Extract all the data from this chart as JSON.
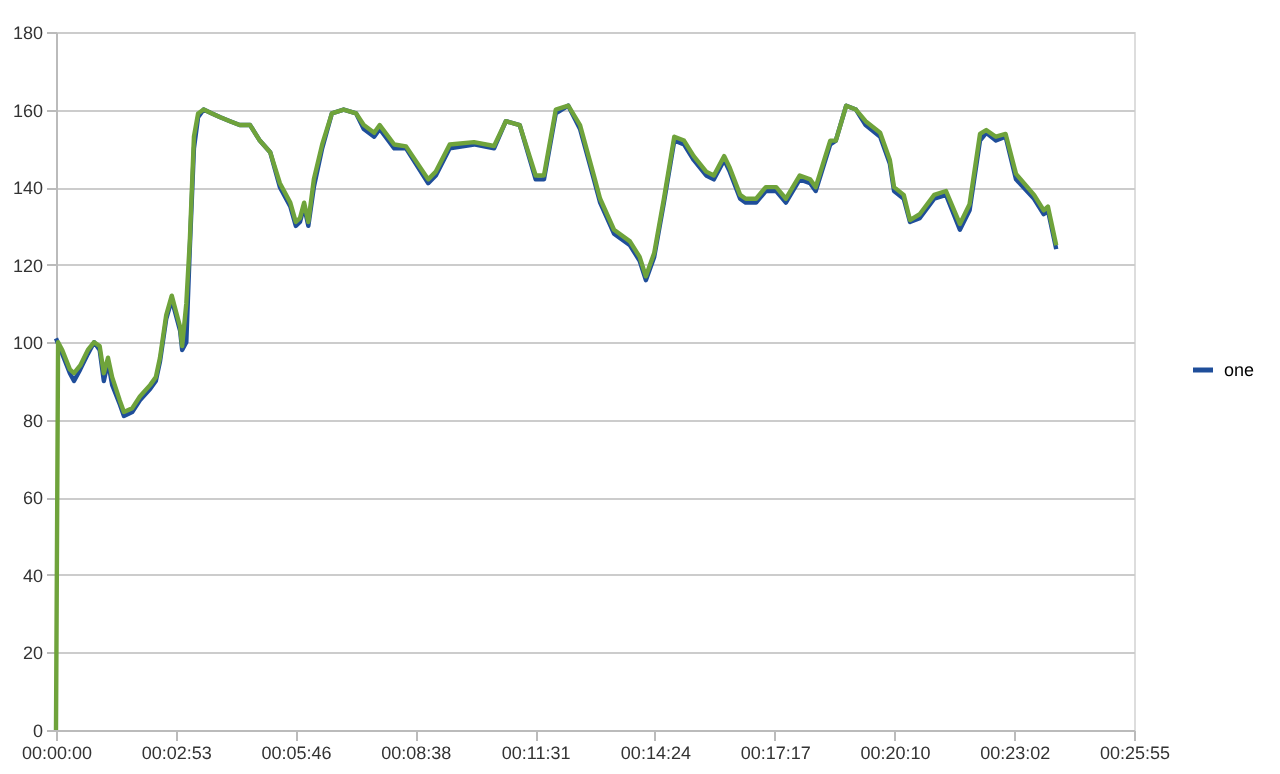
{
  "chart_data": {
    "type": "line",
    "xlim": [
      0,
      1555.2
    ],
    "ylim": [
      0,
      180
    ],
    "xticks": [
      {
        "value": 0,
        "label": "00:00:00"
      },
      {
        "value": 172.8,
        "label": "00:02:53"
      },
      {
        "value": 345.6,
        "label": "00:05:46"
      },
      {
        "value": 518.4,
        "label": "00:08:38"
      },
      {
        "value": 691.2,
        "label": "00:11:31"
      },
      {
        "value": 864,
        "label": "00:14:24"
      },
      {
        "value": 1036.8,
        "label": "00:17:17"
      },
      {
        "value": 1209.6,
        "label": "00:20:10"
      },
      {
        "value": 1382.4,
        "label": "00:23:02"
      },
      {
        "value": 1555.2,
        "label": "00:25:55"
      }
    ],
    "yticks": [
      0,
      20,
      40,
      60,
      80,
      100,
      120,
      140,
      160,
      180
    ],
    "grid": "y",
    "legend": "right",
    "line_style": "solid",
    "marker": "none",
    "series": [
      {
        "name": "one",
        "color": "#1f4e9a",
        "x": [
          0,
          9,
          20,
          26,
          35,
          46,
          55,
          63,
          69,
          75,
          81,
          92,
          98,
          110,
          121,
          136,
          144,
          150,
          159,
          167,
          173,
          179,
          182,
          188,
          193,
          199,
          205,
          213,
          225,
          237,
          251,
          265,
          280,
          294,
          309,
          323,
          338,
          346,
          352,
          358,
          364,
          372,
          384,
          398,
          415,
          433,
          444,
          459,
          467,
          488,
          505,
          537,
          548,
          568,
          603,
          632,
          649,
          669,
          692,
          704,
          721,
          739,
          756,
          776,
          785,
          805,
          828,
          842,
          851,
          863,
          877,
          892,
          906,
          920,
          938,
          949,
          964,
          972,
          987,
          995,
          1010,
          1024,
          1039,
          1053,
          1073,
          1088,
          1096,
          1117,
          1125,
          1140,
          1154,
          1168,
          1189,
          1203,
          1209,
          1223,
          1232,
          1246,
          1267,
          1284,
          1304,
          1318,
          1333,
          1342,
          1356,
          1370,
          1385,
          1411,
          1425,
          1431,
          1443
        ],
        "values": [
          101,
          97,
          92,
          90,
          93,
          97,
          100,
          98,
          90,
          95,
          89,
          84,
          81,
          82,
          85,
          88,
          90,
          95,
          106,
          111,
          107,
          103,
          98,
          100,
          124,
          150,
          158,
          160,
          159,
          158,
          157,
          156,
          156,
          152,
          149,
          140,
          135,
          130,
          131,
          135,
          130,
          140,
          150,
          159,
          160,
          159,
          155,
          153,
          155,
          150,
          150,
          141,
          143,
          150,
          151,
          150,
          157,
          156,
          142,
          142,
          159,
          161,
          155,
          142,
          136,
          128,
          125,
          121,
          116,
          122,
          136,
          152,
          151,
          147,
          143,
          142,
          147,
          144,
          137,
          136,
          136,
          139,
          139,
          136,
          142,
          141,
          139,
          151,
          152,
          161,
          160,
          156,
          153,
          146,
          139,
          137,
          131,
          132,
          137,
          138,
          129,
          134,
          152,
          154,
          152,
          153,
          142,
          137,
          133,
          134,
          124
        ]
      },
      {
        "color": "#6fa33b",
        "x": [
          0,
          3,
          9,
          20,
          26,
          35,
          46,
          55,
          63,
          69,
          75,
          81,
          92,
          98,
          110,
          121,
          136,
          144,
          150,
          159,
          167,
          173,
          179,
          182,
          188,
          193,
          199,
          205,
          213,
          225,
          237,
          251,
          265,
          280,
          294,
          309,
          323,
          338,
          346,
          352,
          358,
          364,
          372,
          384,
          398,
          415,
          433,
          444,
          459,
          467,
          488,
          505,
          537,
          548,
          568,
          603,
          632,
          649,
          669,
          692,
          704,
          721,
          739,
          756,
          776,
          785,
          805,
          828,
          842,
          851,
          863,
          877,
          892,
          906,
          920,
          938,
          949,
          964,
          972,
          987,
          995,
          1010,
          1024,
          1039,
          1053,
          1073,
          1088,
          1096,
          1117,
          1125,
          1140,
          1154,
          1168,
          1189,
          1203,
          1209,
          1223,
          1232,
          1246,
          1267,
          1284,
          1304,
          1318,
          1333,
          1342,
          1356,
          1370,
          1385,
          1411,
          1425,
          1431,
          1443
        ],
        "values": [
          0,
          100,
          98,
          93,
          92,
          94,
          98,
          100,
          99,
          92,
          96,
          91,
          85,
          82,
          83,
          86,
          89,
          91,
          96,
          107,
          112,
          108,
          104,
          99,
          110,
          126,
          153,
          159,
          160,
          159,
          158,
          157,
          156,
          156,
          152,
          149,
          141,
          136,
          131,
          132,
          136,
          131,
          142,
          151,
          159,
          160,
          159,
          156,
          154,
          156,
          151,
          150.5,
          142,
          144,
          151,
          151.6,
          150.6,
          157,
          156,
          143,
          143,
          160,
          161,
          156,
          143,
          137,
          129,
          126,
          122,
          117,
          123,
          137,
          153,
          152,
          148,
          144,
          143,
          148,
          145,
          138,
          137,
          137,
          140,
          140,
          137,
          143,
          142,
          140,
          152,
          152,
          161,
          160,
          157,
          154,
          147,
          140,
          138,
          131.5,
          133,
          138,
          139,
          130.5,
          135.6,
          153.7,
          154.7,
          153,
          153.7,
          143.4,
          138,
          134,
          135,
          125
        ]
      }
    ]
  }
}
